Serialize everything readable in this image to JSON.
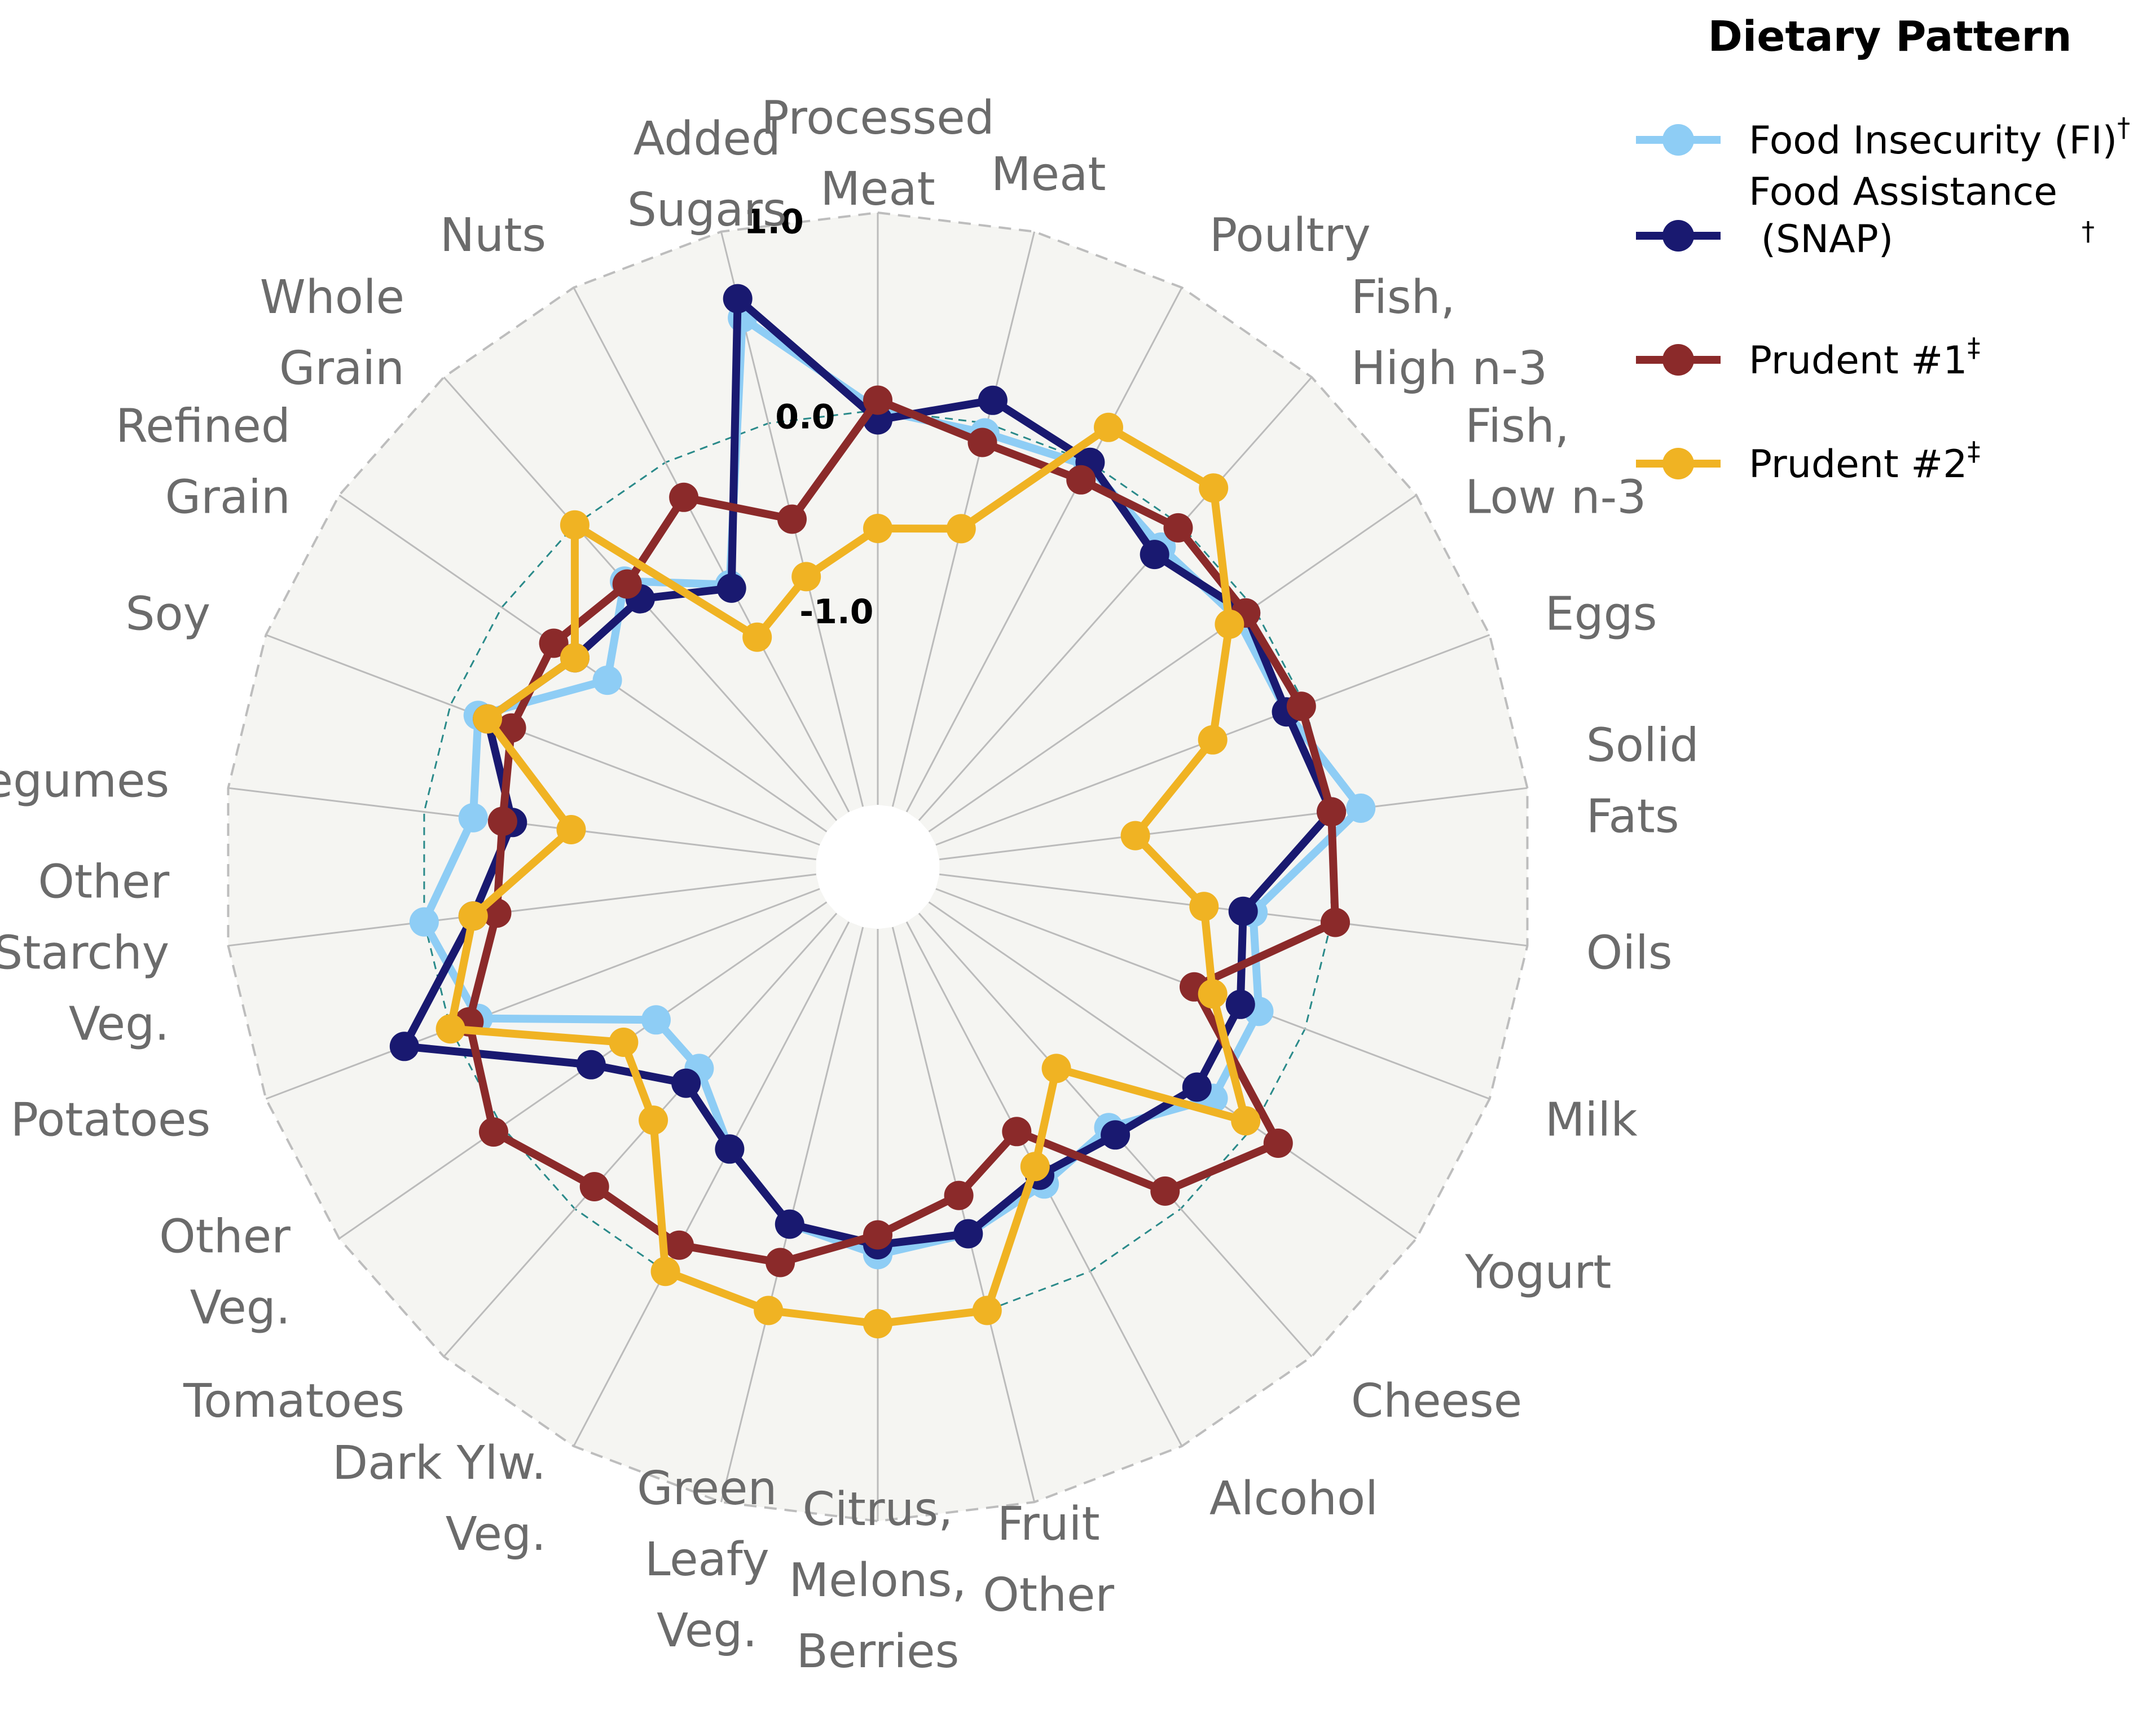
{
  "chart_data": {
    "type": "radar",
    "rlim": [
      -2.0,
      1.0
    ],
    "ticks": [
      {
        "value": 1.0,
        "label": "1.0"
      },
      {
        "value": 0.0,
        "label": "0.0"
      },
      {
        "value": -1.0,
        "label": "-1.0"
      }
    ],
    "categories": [
      [
        "Processed",
        "Meat"
      ],
      [
        "Meat"
      ],
      [
        "Poultry"
      ],
      [
        "Fish,",
        "High n-3"
      ],
      [
        "Fish,",
        "Low n-3"
      ],
      [
        "Eggs"
      ],
      [
        "Solid",
        "Fats"
      ],
      [
        "Oils"
      ],
      [
        "Milk"
      ],
      [
        "Yogurt"
      ],
      [
        "Cheese"
      ],
      [
        "Alcohol"
      ],
      [
        "Fruit",
        "Other"
      ],
      [
        "Citrus,",
        "Melons,",
        "Berries"
      ],
      [
        "Green",
        "Leafy",
        "Veg."
      ],
      [
        "Dark Ylw.",
        "Veg."
      ],
      [
        "Tomatoes"
      ],
      [
        "Other",
        "Veg."
      ],
      [
        "Potatoes"
      ],
      [
        "Other",
        "Starchy",
        "Veg."
      ],
      [
        "Legumes"
      ],
      [
        "Soy"
      ],
      [
        "Refined",
        "Grain"
      ],
      [
        "Whole",
        "Grain"
      ],
      [
        "Nuts"
      ],
      [
        "Added",
        "Sugars"
      ]
    ],
    "series": [
      {
        "name": "Food Insecurity (FI)",
        "mark": "†",
        "color": "#8ecdf5",
        "values": [
          0.0,
          -0.05,
          -0.02,
          -0.15,
          -0.1,
          -0.1,
          0.15,
          -0.4,
          -0.25,
          -0.25,
          -0.55,
          -0.5,
          -0.4,
          -0.35,
          -0.45,
          -0.7,
          -0.95,
          -0.95,
          -0.15,
          0.0,
          -0.25,
          -0.15,
          -0.65,
          -0.38,
          -0.7,
          0.55
        ]
      },
      {
        "name": "Food Assistance\n (SNAP)",
        "mark": "†",
        "color": "#191970",
        "values": [
          -0.05,
          0.12,
          0.0,
          -0.2,
          -0.05,
          -0.1,
          0.0,
          -0.45,
          -0.35,
          -0.35,
          -0.5,
          -0.55,
          -0.4,
          -0.4,
          -0.45,
          -0.7,
          -0.85,
          -0.55,
          0.25,
          -0.25,
          -0.45,
          -0.2,
          -0.45,
          -0.5,
          -0.72,
          0.65
        ]
      },
      {
        "name": "Prudent #1",
        "mark": "‡",
        "color": "#8b2a2a",
        "values": [
          0.05,
          -0.1,
          -0.1,
          -0.02,
          -0.05,
          -0.02,
          0.0,
          0.02,
          -0.6,
          0.15,
          -0.12,
          -0.8,
          -0.6,
          -0.45,
          -0.25,
          -0.15,
          -0.15,
          0.05,
          -0.1,
          -0.37,
          -0.4,
          -0.33,
          -0.32,
          -0.4,
          -0.2,
          -0.5
        ]
      },
      {
        "name": "Prudent #2",
        "mark": "‡",
        "color": "#f0b323",
        "values": [
          -0.6,
          -0.55,
          0.2,
          0.25,
          -0.15,
          -0.5,
          -1.0,
          -0.65,
          -0.5,
          -0.05,
          -0.95,
          -0.6,
          0.0,
          0.0,
          0.0,
          0.0,
          -0.6,
          -0.75,
          0.0,
          -0.25,
          -0.75,
          -0.2,
          -0.45,
          0.0,
          -1.0,
          -0.8
        ]
      }
    ],
    "legend": {
      "title": "Dietary Pattern",
      "position": "top-right"
    },
    "background": "#f5f5f2",
    "grid": true
  }
}
